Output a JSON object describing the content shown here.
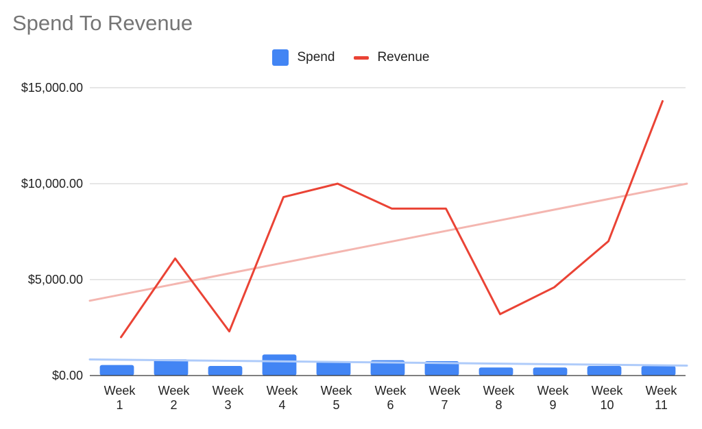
{
  "chart_data": {
    "type": "bar",
    "title": "Spend To Revenue",
    "categories": [
      [
        "Week",
        "1"
      ],
      [
        "Week",
        "2"
      ],
      [
        "Week",
        "3"
      ],
      [
        "Week",
        "4"
      ],
      [
        "Week",
        "5"
      ],
      [
        "Week",
        "6"
      ],
      [
        "Week",
        "7"
      ],
      [
        "Week",
        "8"
      ],
      [
        "Week",
        "9"
      ],
      [
        "Week",
        "10"
      ],
      [
        "Week",
        "11"
      ]
    ],
    "series": [
      {
        "name": "Spend",
        "type": "bar",
        "color": "#4285f4",
        "values": [
          550,
          850,
          500,
          1100,
          750,
          800,
          750,
          420,
          420,
          500,
          500
        ],
        "trendline": {
          "start": 840,
          "end": 520,
          "color": "#aecbfa"
        }
      },
      {
        "name": "Revenue",
        "type": "line",
        "color": "#ea4335",
        "values": [
          2000,
          6100,
          2300,
          9300,
          10000,
          8700,
          8700,
          3200,
          4600,
          7000,
          14300
        ],
        "trendline": {
          "start": 3900,
          "end": 10000,
          "color": "#f4b6b0"
        }
      }
    ],
    "yticks": [
      "$0.00",
      "$5,000.00",
      "$10,000.00",
      "$15,000.00"
    ],
    "ytick_values": [
      0,
      5000,
      10000,
      15000
    ],
    "ylim": [
      0,
      15000
    ],
    "grid": true,
    "legend_position": "top-center"
  }
}
